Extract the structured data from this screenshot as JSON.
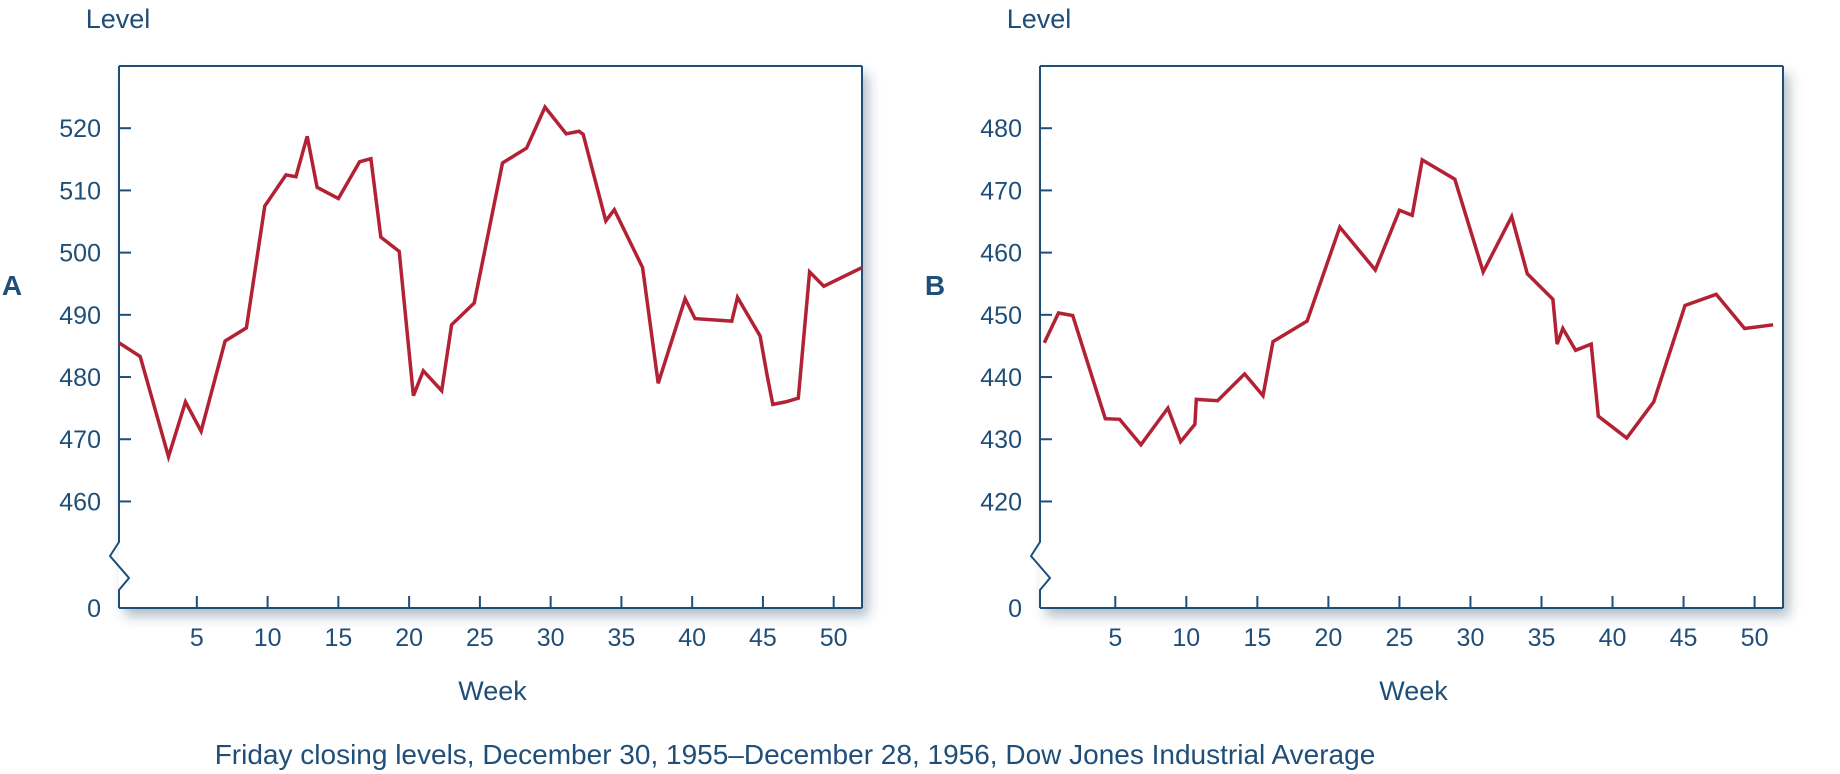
{
  "caption": "Friday closing levels, December 30, 1955–December 28, 1956, Dow Jones Industrial Average",
  "colors": {
    "axis": "#1f4e79",
    "line": "#b22234",
    "text": "#1f4e79"
  },
  "chart_data": [
    {
      "type": "line",
      "panel_label": "A",
      "ylabel": "Level",
      "xlabel": "Week",
      "x_ticks": [
        5,
        10,
        15,
        20,
        25,
        30,
        35,
        40,
        45,
        50
      ],
      "y_ticks": [
        460,
        470,
        480,
        490,
        500,
        510,
        520
      ],
      "y_break_label": "0",
      "axis_break": true,
      "xlim": [
        -0.5,
        52
      ],
      "ylim": [
        453,
        530
      ],
      "grid": false,
      "series": [
        {
          "x": [
            -0.5,
            1,
            3,
            4.2,
            5.3,
            7,
            8.5,
            9.8,
            11.3,
            12,
            12.8,
            13.5,
            15,
            16.5,
            17.3,
            18,
            19.3,
            20.3,
            21,
            22.3,
            23,
            24.6,
            26.6,
            28.3,
            29.6,
            31.1,
            32,
            32.3,
            33.9,
            34.5,
            36.5,
            37.6,
            39.5,
            40.2,
            42.8,
            43.2,
            44.8,
            45.3,
            45.7,
            46.6,
            47.5,
            48.3,
            49.3,
            52
          ],
          "y": [
            485.5,
            483.3,
            467.2,
            476.0,
            471.3,
            485.8,
            487.9,
            507.5,
            512.5,
            512.2,
            518.7,
            510.5,
            508.7,
            514.6,
            515.1,
            502.5,
            500.2,
            477.0,
            481.0,
            477.8,
            488.4,
            491.9,
            514.4,
            516.8,
            523.4,
            519.1,
            519.5,
            519.0,
            505.1,
            506.9,
            497.6,
            479.0,
            492.6,
            489.4,
            489.0,
            492.8,
            486.6,
            480.2,
            475.6,
            476.0,
            476.6,
            496.9,
            494.6,
            497.6
          ]
        }
      ]
    },
    {
      "type": "line",
      "panel_label": "B",
      "ylabel": "Level",
      "xlabel": "Week",
      "x_ticks": [
        5,
        10,
        15,
        20,
        25,
        30,
        35,
        40,
        45,
        50
      ],
      "y_ticks": [
        420,
        430,
        440,
        450,
        460,
        470,
        480
      ],
      "y_break_label": "0",
      "axis_break": true,
      "xlim": [
        -0.3,
        52
      ],
      "ylim": [
        413,
        490
      ],
      "grid": false,
      "series": [
        {
          "x": [
            0,
            1,
            2,
            4.3,
            5.3,
            6.8,
            8.7,
            9.6,
            10.6,
            10.7,
            12.2,
            14.1,
            15.4,
            16.1,
            18.5,
            20.8,
            23.3,
            25,
            25.9,
            26.6,
            28.9,
            30.9,
            32.9,
            34,
            35.8,
            36.1,
            36.5,
            37.4,
            38.5,
            39,
            41,
            42.9,
            45.1,
            47.3,
            49.3,
            51.3
          ],
          "y": [
            445.5,
            450.3,
            449.9,
            433.3,
            433.2,
            429.1,
            435.0,
            429.6,
            432.4,
            436.4,
            436.2,
            440.5,
            437.0,
            445.7,
            449.0,
            464.1,
            457.2,
            466.8,
            466.0,
            474.9,
            471.8,
            456.9,
            465.8,
            456.6,
            452.5,
            445.3,
            447.8,
            444.3,
            445.3,
            433.7,
            430.2,
            436.0,
            451.5,
            453.3,
            447.8,
            448.4
          ]
        }
      ]
    }
  ]
}
